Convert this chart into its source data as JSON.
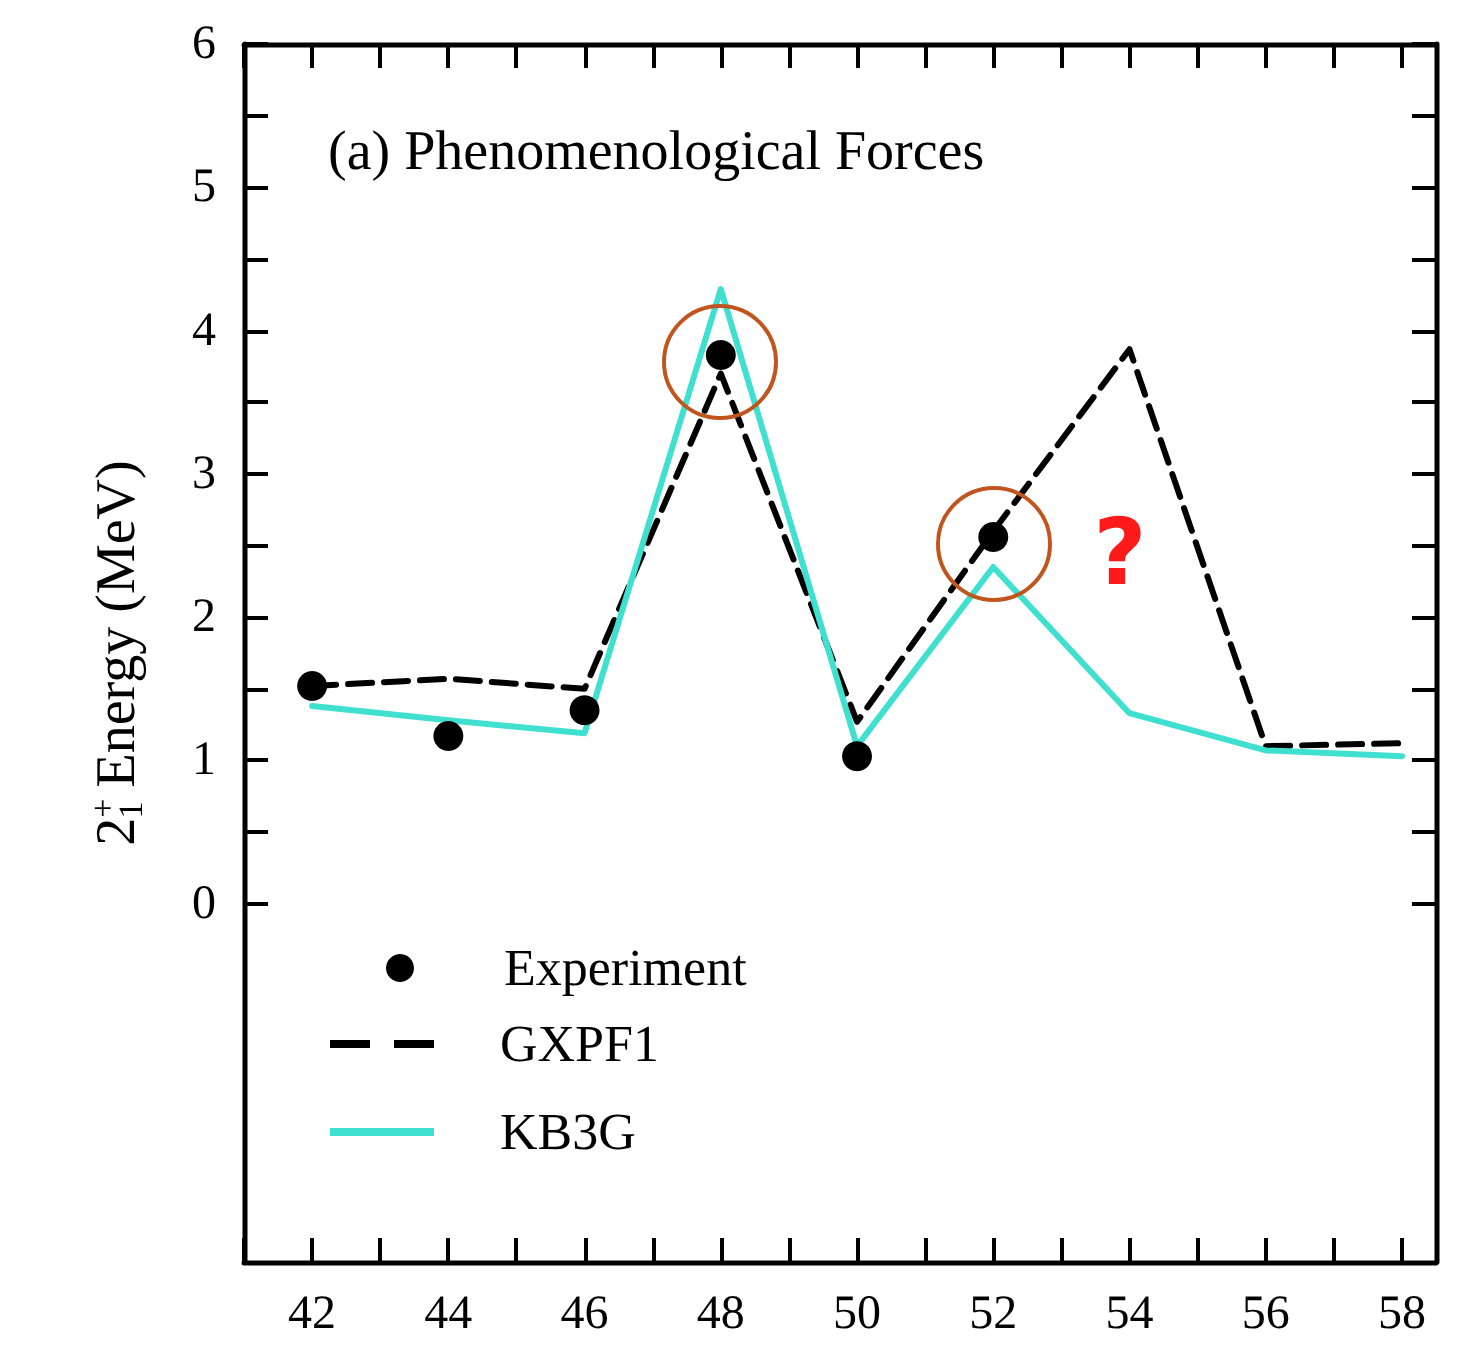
{
  "chart_data": {
    "type": "line",
    "title": "(a) Phenomenological Forces",
    "ylabel": "2$^{+}$$_{1}$ Energy (MeV)",
    "x": [
      42,
      44,
      46,
      48,
      50,
      52,
      54,
      56,
      58
    ],
    "series": [
      {
        "name": "Experiment",
        "type": "scatter",
        "marker": "circle",
        "color": "#000000",
        "x": [
          42,
          44,
          46,
          48,
          50,
          52
        ],
        "values": [
          1.52,
          1.17,
          1.35,
          3.83,
          1.03,
          2.56
        ]
      },
      {
        "name": "GXPF1",
        "marker": "none",
        "line_style": "dashed",
        "color": "#000000",
        "values": [
          1.52,
          1.57,
          1.5,
          3.7,
          1.27,
          2.6,
          3.87,
          1.1,
          1.12
        ]
      },
      {
        "name": "KB3G",
        "marker": "none",
        "line_style": "solid",
        "color": "#40e0d0",
        "values": [
          1.38,
          1.28,
          1.19,
          4.29,
          1.1,
          2.35,
          1.33,
          1.07,
          1.03
        ]
      }
    ],
    "annotations": [
      "?"
    ],
    "xlim": [
      41,
      58.5
    ],
    "xticks": [
      {
        "value": 41,
        "label": null
      },
      42,
      {
        "value": 43,
        "label": null
      },
      44,
      {
        "value": 45,
        "label": null
      },
      46,
      {
        "value": 47,
        "label": null
      },
      48,
      {
        "value": 49,
        "label": null
      },
      50,
      {
        "value": 51,
        "label": null
      },
      52,
      {
        "value": 53,
        "label": null
      },
      54,
      {
        "value": 55,
        "label": null
      },
      56,
      {
        "value": 57,
        "label": null
      },
      58
    ],
    "ylim": [
      -2.5,
      6
    ],
    "yticks": [
      0,
      {
        "value": 0.5,
        "label": null
      },
      1,
      {
        "value": 1.5,
        "label": null
      },
      2,
      {
        "value": 2.5,
        "label": null
      },
      3,
      {
        "value": 3.5,
        "label": null
      },
      4,
      {
        "value": 4.5,
        "label": null
      },
      5,
      {
        "value": 5.5,
        "label": null
      },
      6
    ],
    "grid": false,
    "legend": "bottom left"
  }
}
